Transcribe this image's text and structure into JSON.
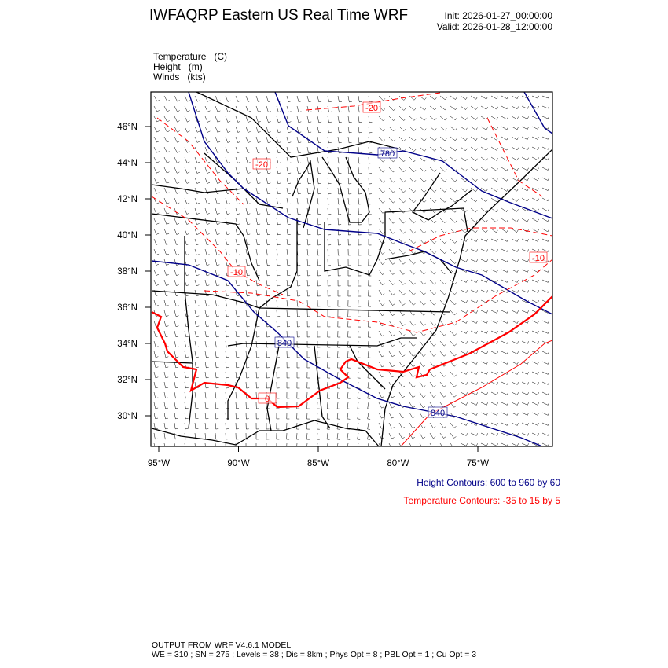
{
  "header": {
    "title": "IWFAQRP Eastern US Real Time WRF",
    "init": "Init: 2026-01-27_00:00:00",
    "valid": "Valid: 2026-01-28_12:00:00"
  },
  "fields": [
    {
      "name": "Temperature",
      "unit": "(C)"
    },
    {
      "name": "Height",
      "unit": "(m)"
    },
    {
      "name": "Winds",
      "unit": "(kts)"
    }
  ],
  "map": {
    "lat_ticks": [
      "46°N",
      "44°N",
      "42°N",
      "40°N",
      "38°N",
      "36°N",
      "34°N",
      "32°N",
      "30°N"
    ],
    "lon_ticks": [
      "95°W",
      "90°W",
      "85°W",
      "80°W",
      "75°W"
    ],
    "height_labels": [
      "780",
      "840",
      "840"
    ],
    "temperature_labels": [
      "-20",
      "-20",
      "-10",
      "-10",
      "0"
    ],
    "colors": {
      "height": "#000088",
      "temperature": "#ff0000",
      "boundaries": "#000000",
      "barbs": "#000000"
    }
  },
  "legend": {
    "height_contours": "Height Contours: 600 to 960 by 60",
    "temperature_contours": "Temperature Contours: -35 to 15 by 5"
  },
  "footer": {
    "line1": "OUTPUT FROM WRF V4.6.1 MODEL",
    "line2": "WE = 310 ; SN = 275 ; Levels = 38 ; Dis = 8km ; Phys Opt = 8 ; PBL Opt = 1 ; Cu Opt = 3"
  }
}
